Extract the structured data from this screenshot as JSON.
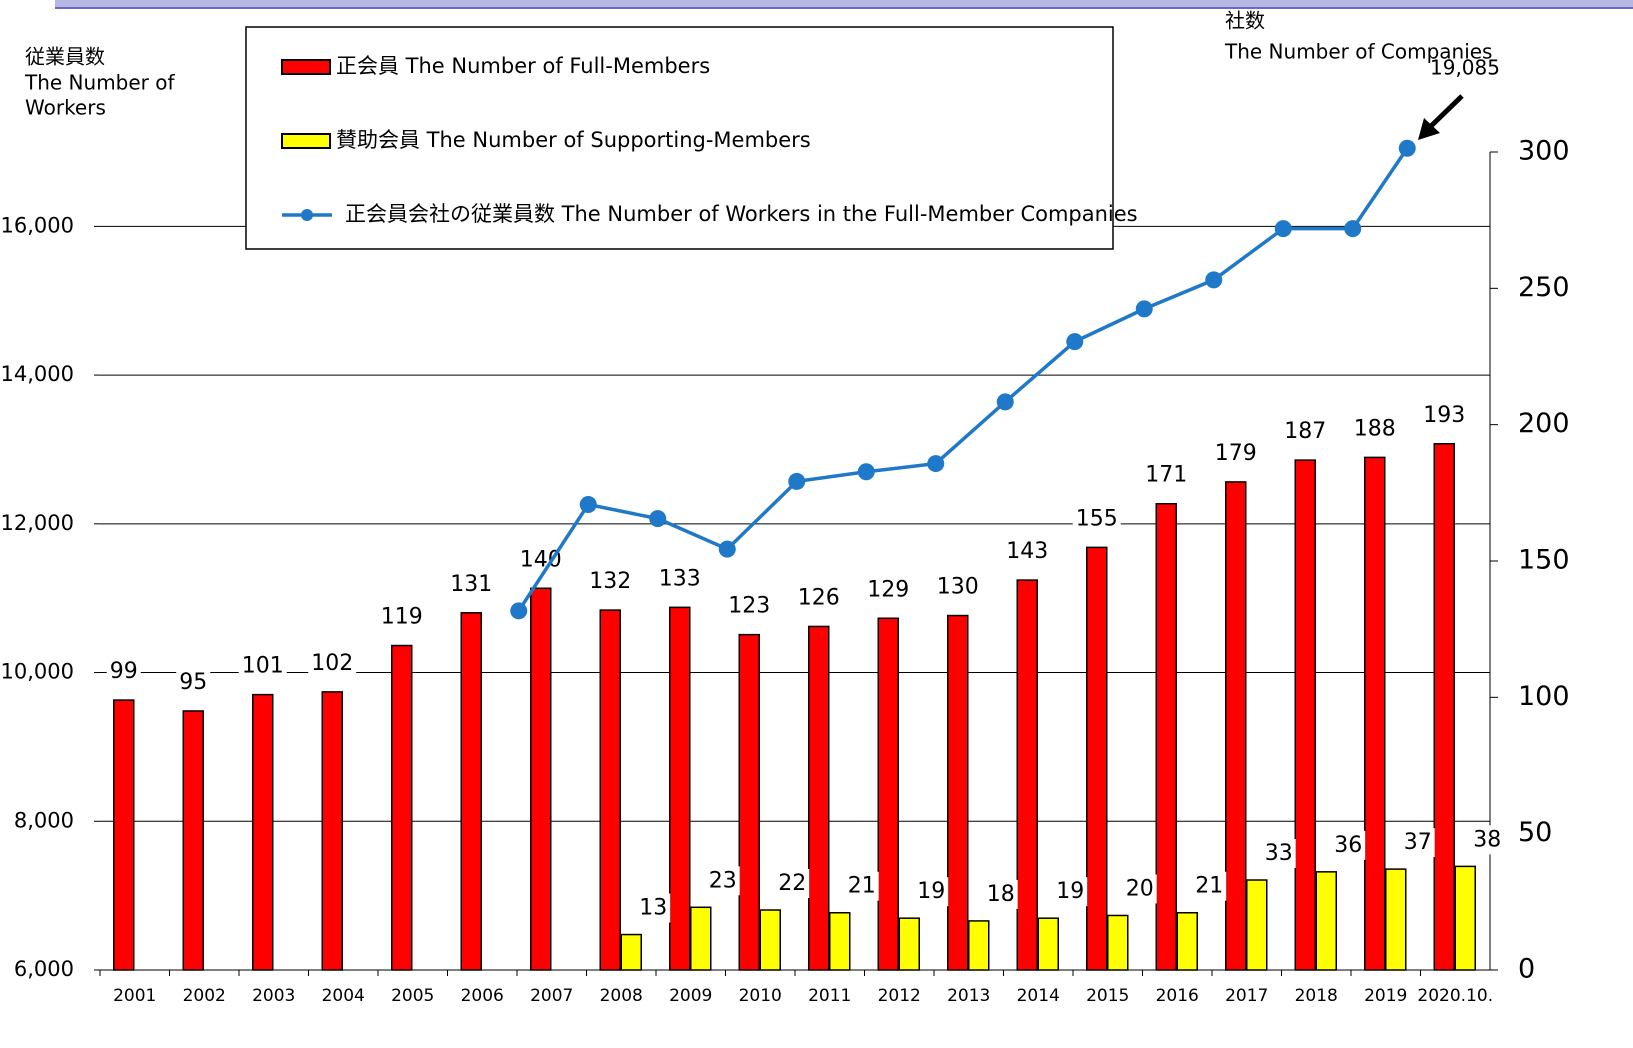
{
  "chart_data": {
    "type": "bar_line",
    "y_axis_label": [
      "従業員数",
      "The Number of",
      "Workers"
    ],
    "y2_axis_label": [
      "社数",
      "The Number of Companies"
    ],
    "annotation": "19,085",
    "categories": [
      "2001",
      "2002",
      "2003",
      "2004",
      "2005",
      "2006",
      "2007",
      "2008",
      "2009",
      "2010",
      "2011",
      "2012",
      "2013",
      "2014",
      "2015",
      "2016",
      "2017",
      "2018",
      "2019",
      "2020.10."
    ],
    "series": [
      {
        "name": "正会員 The Number of Full-Members",
        "type": "bar",
        "axis": "y2",
        "color": "#ff0000",
        "values": [
          99,
          95,
          101,
          102,
          119,
          131,
          140,
          132,
          133,
          123,
          126,
          129,
          130,
          143,
          155,
          171,
          179,
          187,
          188,
          193
        ]
      },
      {
        "name": "賛助会員 The Number of Supporting-Members",
        "type": "bar",
        "axis": "y2",
        "color": "#ffff00",
        "values": [
          null,
          null,
          null,
          null,
          null,
          null,
          null,
          13,
          23,
          22,
          21,
          19,
          18,
          19,
          20,
          21,
          33,
          36,
          37,
          38
        ]
      },
      {
        "name": "正会員会社の従業員数 The Number of Workers in the Full-Member Companies",
        "type": "line",
        "axis": "y",
        "color": "#1f78c8",
        "values": [
          null,
          null,
          null,
          null,
          null,
          null,
          10830,
          12260,
          12070,
          11660,
          12570,
          12700,
          12810,
          13640,
          14450,
          14890,
          15280,
          15970,
          15970,
          17050
        ]
      }
    ],
    "ylim": [
      6000,
      17000
    ],
    "yticks": [
      {
        "value": 6000,
        "label": "6,000"
      },
      {
        "value": 8000,
        "label": "8,000"
      },
      {
        "value": 10000,
        "label": "10,000"
      },
      {
        "value": 12000,
        "label": "12,000"
      },
      {
        "value": 14000,
        "label": "14,000"
      },
      {
        "value": 16000,
        "label": "16,000"
      }
    ],
    "y2lim": [
      0,
      300
    ],
    "y2ticks": [
      0,
      50,
      100,
      150,
      200,
      250,
      300
    ],
    "grid": true
  }
}
